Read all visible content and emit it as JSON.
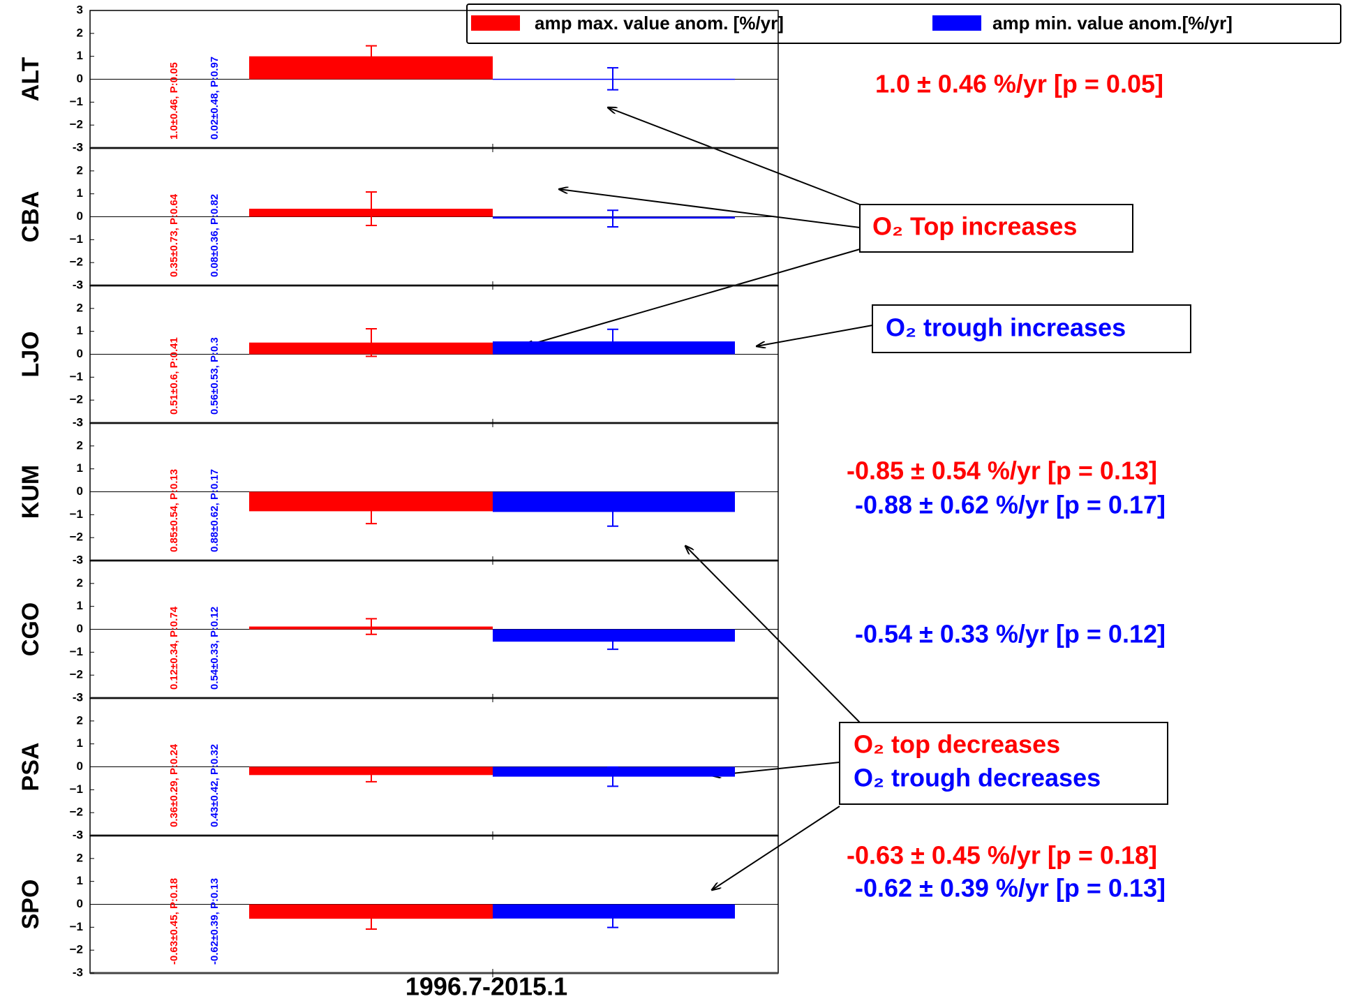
{
  "chart_data": {
    "type": "bar",
    "x_label": "1996.7-2015.1",
    "series": [
      {
        "name": "amp max. value anom. [%/yr]",
        "color": "#ff0000"
      },
      {
        "name": "amp min. value anom.[%/yr]",
        "color": "#0000ff"
      }
    ],
    "ylim": [
      -3,
      3
    ],
    "yticks": [
      -3,
      {
        "value": -2,
        "label": "−2"
      },
      {
        "value": -1,
        "label": "−1"
      },
      0,
      1,
      2,
      3
    ],
    "panels": [
      {
        "station": "ALT",
        "values": [
          1.0,
          0.02
        ],
        "errors": [
          0.46,
          0.48
        ],
        "notes": [
          "1.0±0.46, P:0.05",
          "0.02±0.48, P:0.97"
        ]
      },
      {
        "station": "CBA",
        "values": [
          0.35,
          -0.08
        ],
        "errors": [
          0.73,
          0.36
        ],
        "notes": [
          "0.35±0.73, P:0.64",
          "0.08±0.36, P:0.82"
        ]
      },
      {
        "station": "LJO",
        "values": [
          0.51,
          0.56
        ],
        "errors": [
          0.6,
          0.53
        ],
        "notes": [
          "0.51±0.6, P:0.41",
          "0.56±0.53, P:0.3"
        ]
      },
      {
        "station": "KUM",
        "values": [
          -0.85,
          -0.88
        ],
        "errors": [
          0.54,
          0.62
        ],
        "notes": [
          "0.85±0.54, P:0.13",
          "0.88±0.62, P:0.17"
        ]
      },
      {
        "station": "CGO",
        "values": [
          0.12,
          -0.54
        ],
        "errors": [
          0.34,
          0.33
        ],
        "notes": [
          "0.12±0.34, P:0.74",
          "0.54±0.33, P:0.12"
        ]
      },
      {
        "station": "PSA",
        "values": [
          -0.36,
          -0.43
        ],
        "errors": [
          0.29,
          0.42
        ],
        "notes": [
          "0.36±0.29, P:0.24",
          "0.43±0.42, P:0.32"
        ]
      },
      {
        "station": "SPO",
        "values": [
          -0.63,
          -0.62
        ],
        "errors": [
          0.45,
          0.39
        ],
        "notes": [
          "-0.63±0.45, P:0.18",
          "-0.62±0.39, P:0.13"
        ]
      }
    ],
    "annotations": [
      {
        "text": "1.0 ± 0.46 %/yr   [p = 0.05]",
        "color": "#ff0000"
      },
      {
        "text": "-0.85 ± 0.54 %/yr   [p = 0.13]",
        "color": "#ff0000"
      },
      {
        "text": "-0.88 ± 0.62 %/yr   [p = 0.17]",
        "color": "#0000ff"
      },
      {
        "text": "-0.54 ± 0.33 %/yr   [p = 0.12]",
        "color": "#0000ff"
      },
      {
        "text": "-0.63 ± 0.45 %/yr   [p = 0.18]",
        "color": "#ff0000"
      },
      {
        "text": "-0.62 ± 0.39 %/yr   [p = 0.13]",
        "color": "#0000ff"
      }
    ],
    "callouts": [
      {
        "text": "O₂ Top increases",
        "color": "#ff0000"
      },
      {
        "text": "O₂ trough increases",
        "color": "#0000ff"
      },
      {
        "text": "O₂ top decreases",
        "color": "#ff0000"
      },
      {
        "text": "O₂ trough decreases",
        "color": "#0000ff"
      }
    ]
  }
}
